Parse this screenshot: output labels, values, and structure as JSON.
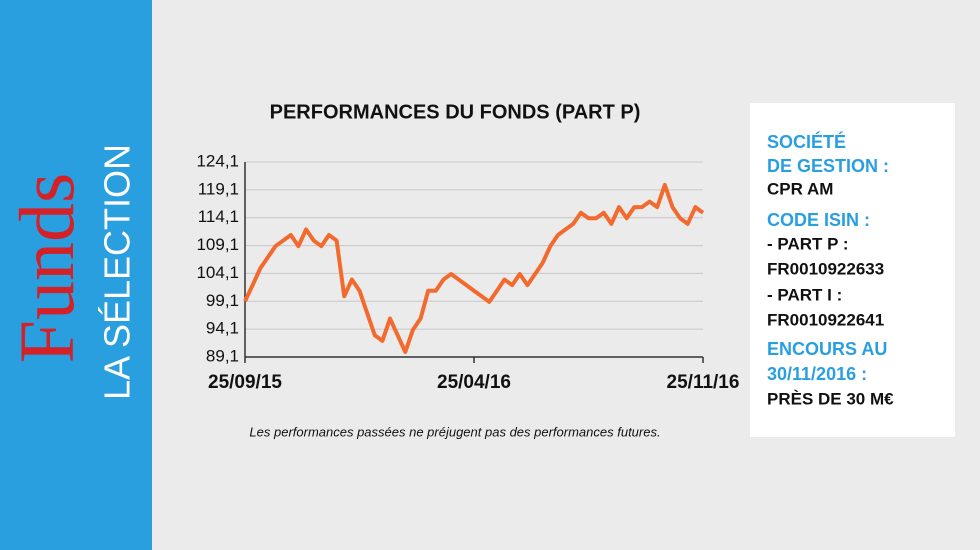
{
  "chart_data": {
    "type": "line",
    "title": "PERFORMANCES DU FONDS (PART P)",
    "note": "Les performances passées ne préjugent pas des performances futures.",
    "categories": [
      "25/09/15",
      null,
      null,
      null,
      null,
      null,
      null,
      null,
      null,
      null,
      null,
      null,
      null,
      null,
      null,
      null,
      null,
      null,
      null,
      null,
      null,
      null,
      null,
      null,
      null,
      null,
      null,
      null,
      null,
      null,
      "25/04/16",
      null,
      null,
      null,
      null,
      null,
      null,
      null,
      null,
      null,
      null,
      null,
      null,
      null,
      null,
      null,
      null,
      null,
      null,
      null,
      null,
      null,
      null,
      null,
      null,
      null,
      null,
      null,
      null,
      null,
      "25/11/16"
    ],
    "series": [
      {
        "name": "Part P",
        "color": "#f26a2e",
        "values": [
          99.1,
          102,
          105,
          107,
          109,
          110,
          111,
          109,
          112,
          110,
          109,
          111,
          110,
          100,
          103,
          101,
          97,
          93,
          92,
          96,
          93,
          90,
          94,
          96,
          101,
          101,
          103,
          104,
          103,
          102,
          101,
          100,
          99,
          101,
          103,
          102,
          104,
          102,
          104,
          106,
          109,
          111,
          112,
          113,
          115,
          114,
          114,
          115,
          113,
          116,
          114,
          116,
          116,
          117,
          116,
          120,
          116,
          114,
          113,
          116,
          115
        ]
      }
    ],
    "ylim": [
      89.1,
      124.1
    ],
    "yticks": [
      {
        "value": 89.1,
        "label": "89,1"
      },
      {
        "value": 94.1,
        "label": "94,1"
      },
      {
        "value": 99.1,
        "label": "99,1"
      },
      {
        "value": 104.1,
        "label": "104,1"
      },
      {
        "value": 109.1,
        "label": "109,1"
      },
      {
        "value": 114.1,
        "label": "114,1"
      },
      {
        "value": 119.1,
        "label": "119,1"
      },
      {
        "value": 124.1,
        "label": "124,1"
      }
    ],
    "grid": true
  },
  "sidebar": {
    "brand": "Funds",
    "subtitle": "LA SÉLECTION"
  },
  "info": {
    "lines": [
      "SOCIÉTÉ",
      "DE GESTION :",
      "CPR AM",
      "CODE ISIN :",
      "- PART P :",
      "FR0010922633",
      "- PART I :",
      "FR0010922641",
      "ENCOURS AU",
      "30/11/2016 :",
      "PRÈS DE 30 M€"
    ]
  }
}
